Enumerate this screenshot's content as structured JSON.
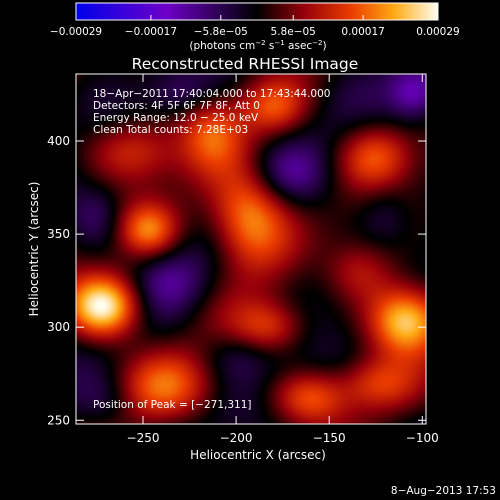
{
  "chart_data": {
    "type": "heatmap",
    "title": "Reconstructed RHESSI Image",
    "xlabel": "Heliocentric X (arcsec)",
    "ylabel": "Heliocentric Y (arcsec)",
    "xlim": [
      -286,
      -98
    ],
    "ylim": [
      248,
      436
    ],
    "x_ticks": [
      -250,
      -200,
      -150,
      -100
    ],
    "x_tick_labels": [
      "−250",
      "−200",
      "−150",
      "−100"
    ],
    "y_ticks": [
      250,
      300,
      350,
      400
    ],
    "y_tick_labels": [
      "250",
      "300",
      "350",
      "400"
    ],
    "colorbar": {
      "range": [
        -0.00029,
        0.00029
      ],
      "ticks": [
        -0.00029,
        -0.00017,
        -5.8e-05,
        5.8e-05,
        0.00017,
        0.00029
      ],
      "tick_labels": [
        "−0.00029",
        "−0.00017",
        "−5.8e−05",
        "5.8e−05",
        "0.00017",
        "0.00029"
      ],
      "unit_main": "(photons cm",
      "unit_sup1": "−2",
      "unit_mid": " s",
      "unit_sup2": "−1",
      "unit_mid2": " asec",
      "unit_sup3": "−2",
      "unit_end": ")"
    },
    "annotations": {
      "time_range": "18−Apr−2011 17:40:04.000 to 17:43:44.000",
      "detectors": "Detectors: 4F 5F 6F 7F 8F, Att 0",
      "energy": "Energy Range: 12.0 − 25.0 keV",
      "clean": "Clean     Total counts: 7.28E+03",
      "peak": "Position of Peak = [−271,311]"
    },
    "blobs": [
      {
        "x": -271,
        "y": 311,
        "v": 1.0,
        "sx": 14,
        "sy": 12
      },
      {
        "x": -109,
        "y": 304,
        "v": 0.92,
        "sx": 14,
        "sy": 13
      },
      {
        "x": -193,
        "y": 358,
        "v": 0.8,
        "sx": 15,
        "sy": 19
      },
      {
        "x": -247,
        "y": 352,
        "v": 0.55,
        "sx": 11,
        "sy": 10
      },
      {
        "x": -255,
        "y": 395,
        "v": 0.45,
        "sx": 17,
        "sy": 12
      },
      {
        "x": -213,
        "y": 405,
        "v": 0.45,
        "sx": 12,
        "sy": 14
      },
      {
        "x": -180,
        "y": 418,
        "v": 0.4,
        "sx": 12,
        "sy": 10
      },
      {
        "x": -182,
        "y": 300,
        "v": 0.45,
        "sx": 14,
        "sy": 10
      },
      {
        "x": -135,
        "y": 330,
        "v": 0.45,
        "sx": 15,
        "sy": 12
      },
      {
        "x": -125,
        "y": 392,
        "v": 0.5,
        "sx": 14,
        "sy": 12
      },
      {
        "x": -236,
        "y": 268,
        "v": 0.45,
        "sx": 20,
        "sy": 13
      },
      {
        "x": -160,
        "y": 262,
        "v": 0.5,
        "sx": 14,
        "sy": 10
      },
      {
        "x": -125,
        "y": 270,
        "v": 0.4,
        "sx": 14,
        "sy": 10
      },
      {
        "x": -150,
        "y": 330,
        "v": -0.2,
        "sx": 15,
        "sy": 13
      },
      {
        "x": -172,
        "y": 382,
        "v": -0.25,
        "sx": 14,
        "sy": 11
      },
      {
        "x": -104,
        "y": 426,
        "v": -0.45,
        "sx": 10,
        "sy": 10
      },
      {
        "x": -235,
        "y": 325,
        "v": -0.25,
        "sx": 14,
        "sy": 12
      },
      {
        "x": -275,
        "y": 360,
        "v": -0.25,
        "sx": 10,
        "sy": 12
      },
      {
        "x": -200,
        "y": 285,
        "v": -0.2,
        "sx": 14,
        "sy": 10
      },
      {
        "x": -270,
        "y": 260,
        "v": -0.2,
        "sx": 12,
        "sy": 10
      },
      {
        "x": -120,
        "y": 360,
        "v": -0.2,
        "sx": 10,
        "sy": 12
      },
      {
        "x": -230,
        "y": 425,
        "v": -0.2,
        "sx": 12,
        "sy": 8
      }
    ]
  },
  "footer": {
    "date": "8−Aug−2013 17:53"
  }
}
